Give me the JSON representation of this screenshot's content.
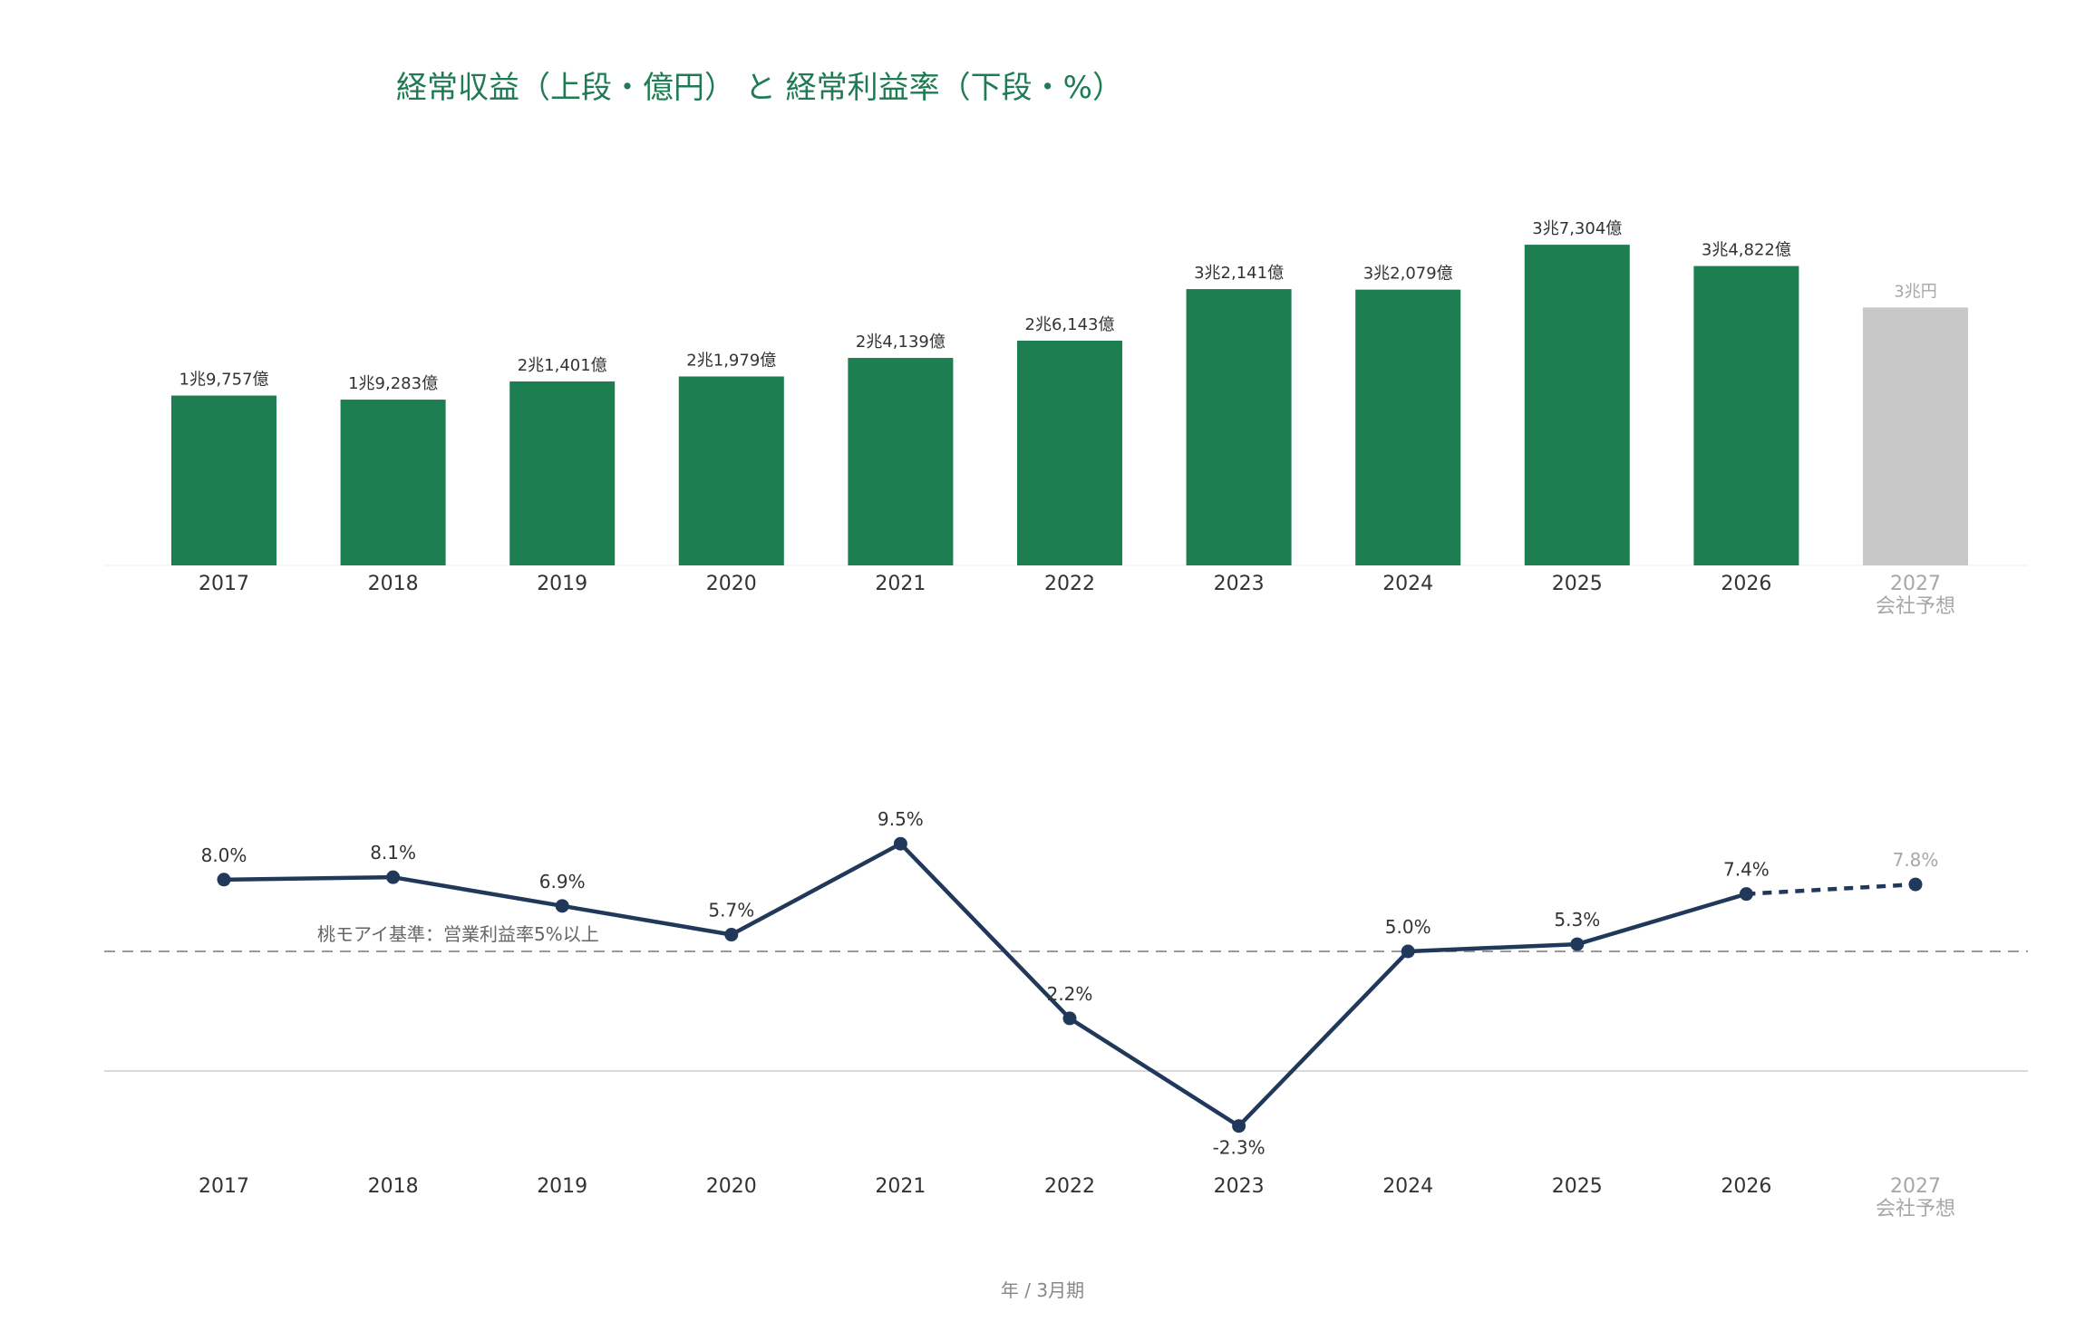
{
  "title": "経常収益（上段・億円） と 経常利益率（下段・%）",
  "colors": {
    "title": "#1e7b52",
    "bar": "#1d7e52",
    "bar_forecast": "#c8c8c8",
    "line": "#20395a",
    "reference": "#999999",
    "zero_line": "#d9d9d9",
    "forecast_text": "#a7a7a7"
  },
  "footer": "年 / 3月期",
  "forecast_sublabel": "会社予想",
  "chart_data": [
    {
      "type": "bar",
      "title": "経常収益（上段・億円）",
      "categories": [
        "2017",
        "2018",
        "2019",
        "2020",
        "2021",
        "2022",
        "2023",
        "2024",
        "2025",
        "2026",
        "2027"
      ],
      "values": [
        19757,
        19283,
        21401,
        21979,
        24139,
        26143,
        32141,
        32079,
        37304,
        34822,
        30000
      ],
      "value_labels": [
        "1兆9,757億",
        "1兆9,283億",
        "2兆1,401億",
        "2兆1,979億",
        "2兆4,139億",
        "2兆6,143億",
        "3兆2,141億",
        "3兆2,079億",
        "3兆7,304億",
        "3兆4,822億",
        "3兆円"
      ],
      "forecast": [
        false,
        false,
        false,
        false,
        false,
        false,
        false,
        false,
        false,
        false,
        true
      ],
      "ylim": [
        0,
        39000
      ]
    },
    {
      "type": "line",
      "title": "経常利益率（下段・%）",
      "categories": [
        "2017",
        "2018",
        "2019",
        "2020",
        "2021",
        "2022",
        "2023",
        "2024",
        "2025",
        "2026",
        "2027"
      ],
      "values": [
        8.0,
        8.1,
        6.9,
        5.7,
        9.5,
        2.2,
        -2.3,
        5.0,
        5.3,
        7.4,
        7.8
      ],
      "value_labels": [
        "8.0%",
        "8.1%",
        "6.9%",
        "5.7%",
        "9.5%",
        "2.2%",
        "-2.3%",
        "5.0%",
        "5.3%",
        "7.4%",
        "7.8%"
      ],
      "forecast": [
        false,
        false,
        false,
        false,
        false,
        false,
        false,
        false,
        false,
        false,
        true
      ],
      "reference_line": {
        "value": 5.0,
        "label": "桃モアイ基準：営業利益率5%以上"
      },
      "zero_line": true
    }
  ]
}
